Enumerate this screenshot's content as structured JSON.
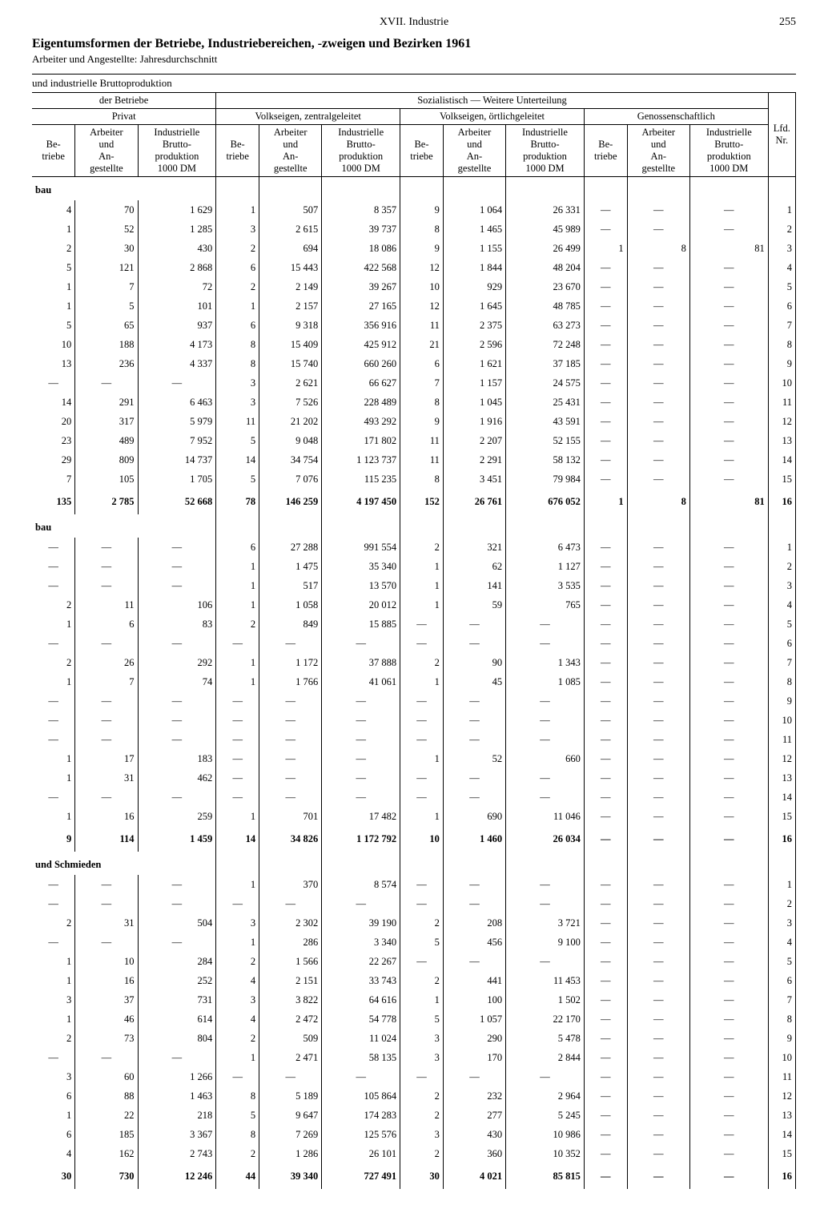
{
  "header": {
    "chapter": "XVII. Industrie",
    "page": "255"
  },
  "title": "Eigentumsformen der Betriebe, Industriebereichen, -zweigen und Bezirken 1961",
  "subtitle": "Arbeiter und Angestellte: Jahresdurchschnitt",
  "strip": "und industrielle Bruttoproduktion",
  "heads": {
    "der_betriebe": "der Betriebe",
    "soz": "Sozialistisch — Weitere Unterteilung",
    "privat": "Privat",
    "vz": "Volkseigen, zentralgeleitet",
    "vo": "Volkseigen, örtlichgeleitet",
    "gen": "Genossenschaftlich",
    "be": "Be-\ntriebe",
    "arb": "Arbeiter\nund\nAn-\ngestellte",
    "ibp": "Industrielle\nBrutto-\nproduktion\n1000 DM",
    "lfd": "Lfd.\nNr."
  },
  "sections": [
    {
      "label": "bau",
      "rows": [
        [
          "4",
          "70",
          "1 629",
          "1",
          "507",
          "8 357",
          "9",
          "1 064",
          "26 331",
          "—",
          "—",
          "—",
          "1"
        ],
        [
          "1",
          "52",
          "1 285",
          "3",
          "2 615",
          "39 737",
          "8",
          "1 465",
          "45 989",
          "—",
          "—",
          "—",
          "2"
        ],
        [
          "2",
          "30",
          "430",
          "2",
          "694",
          "18 086",
          "9",
          "1 155",
          "26 499",
          "1",
          "8",
          "81",
          "3"
        ],
        [
          "5",
          "121",
          "2 868",
          "6",
          "15 443",
          "422 568",
          "12",
          "1 844",
          "48 204",
          "—",
          "—",
          "—",
          "4"
        ],
        [
          "1",
          "7",
          "72",
          "2",
          "2 149",
          "39 267",
          "10",
          "929",
          "23 670",
          "—",
          "—",
          "—",
          "5"
        ],
        [
          "1",
          "5",
          "101",
          "1",
          "2 157",
          "27 165",
          "12",
          "1 645",
          "48 785",
          "—",
          "—",
          "—",
          "6"
        ],
        [
          "5",
          "65",
          "937",
          "6",
          "9 318",
          "356 916",
          "11",
          "2 375",
          "63 273",
          "—",
          "—",
          "—",
          "7"
        ],
        [
          "10",
          "188",
          "4 173",
          "8",
          "15 409",
          "425 912",
          "21",
          "2 596",
          "72 248",
          "—",
          "—",
          "—",
          "8"
        ],
        [
          "13",
          "236",
          "4 337",
          "8",
          "15 740",
          "660 260",
          "6",
          "1 621",
          "37 185",
          "—",
          "—",
          "—",
          "9"
        ],
        [
          "—",
          "—",
          "—",
          "3",
          "2 621",
          "66 627",
          "7",
          "1 157",
          "24 575",
          "—",
          "—",
          "—",
          "10"
        ],
        [
          "14",
          "291",
          "6 463",
          "3",
          "7 526",
          "228 489",
          "8",
          "1 045",
          "25 431",
          "—",
          "—",
          "—",
          "11"
        ],
        [
          "20",
          "317",
          "5 979",
          "11",
          "21 202",
          "493 292",
          "9",
          "1 916",
          "43 591",
          "—",
          "—",
          "—",
          "12"
        ],
        [
          "23",
          "489",
          "7 952",
          "5",
          "9 048",
          "171 802",
          "11",
          "2 207",
          "52 155",
          "—",
          "—",
          "—",
          "13"
        ],
        [
          "29",
          "809",
          "14 737",
          "14",
          "34 754",
          "1 123 737",
          "11",
          "2 291",
          "58 132",
          "—",
          "—",
          "—",
          "14"
        ],
        [
          "7",
          "105",
          "1 705",
          "5",
          "7 076",
          "115 235",
          "8",
          "3 451",
          "79 984",
          "—",
          "—",
          "—",
          "15"
        ]
      ],
      "total": [
        "135",
        "2 785",
        "52 668",
        "78",
        "146 259",
        "4 197 450",
        "152",
        "26 761",
        "676 052",
        "1",
        "8",
        "81",
        "16"
      ]
    },
    {
      "label": "bau",
      "rows": [
        [
          "—",
          "—",
          "—",
          "6",
          "27 288",
          "991 554",
          "2",
          "321",
          "6 473",
          "—",
          "—",
          "—",
          "1"
        ],
        [
          "—",
          "—",
          "—",
          "1",
          "1 475",
          "35 340",
          "1",
          "62",
          "1 127",
          "—",
          "—",
          "—",
          "2"
        ],
        [
          "—",
          "—",
          "—",
          "1",
          "517",
          "13 570",
          "1",
          "141",
          "3 535",
          "—",
          "—",
          "—",
          "3"
        ],
        [
          "2",
          "11",
          "106",
          "1",
          "1 058",
          "20 012",
          "1",
          "59",
          "765",
          "—",
          "—",
          "—",
          "4"
        ],
        [
          "1",
          "6",
          "83",
          "2",
          "849",
          "15 885",
          "—",
          "—",
          "—",
          "—",
          "—",
          "—",
          "5"
        ],
        [
          "—",
          "—",
          "—",
          "—",
          "—",
          "—",
          "—",
          "—",
          "—",
          "—",
          "—",
          "—",
          "6"
        ],
        [
          "2",
          "26",
          "292",
          "1",
          "1 172",
          "37 888",
          "2",
          "90",
          "1 343",
          "—",
          "—",
          "—",
          "7"
        ],
        [
          "1",
          "7",
          "74",
          "1",
          "1 766",
          "41 061",
          "1",
          "45",
          "1 085",
          "—",
          "—",
          "—",
          "8"
        ],
        [
          "—",
          "—",
          "—",
          "—",
          "—",
          "—",
          "—",
          "—",
          "—",
          "—",
          "—",
          "—",
          "9"
        ],
        [
          "—",
          "—",
          "—",
          "—",
          "—",
          "—",
          "—",
          "—",
          "—",
          "—",
          "—",
          "—",
          "10"
        ],
        [
          "—",
          "—",
          "—",
          "—",
          "—",
          "—",
          "—",
          "—",
          "—",
          "—",
          "—",
          "—",
          "11"
        ],
        [
          "1",
          "17",
          "183",
          "—",
          "—",
          "—",
          "1",
          "52",
          "660",
          "—",
          "—",
          "—",
          "12"
        ],
        [
          "1",
          "31",
          "462",
          "—",
          "—",
          "—",
          "—",
          "—",
          "—",
          "—",
          "—",
          "—",
          "13"
        ],
        [
          "—",
          "—",
          "—",
          "—",
          "—",
          "—",
          "—",
          "—",
          "—",
          "—",
          "—",
          "—",
          "14"
        ],
        [
          "1",
          "16",
          "259",
          "1",
          "701",
          "17 482",
          "1",
          "690",
          "11 046",
          "—",
          "—",
          "—",
          "15"
        ]
      ],
      "total": [
        "9",
        "114",
        "1 459",
        "14",
        "34 826",
        "1 172 792",
        "10",
        "1 460",
        "26 034",
        "—",
        "—",
        "—",
        "16"
      ]
    },
    {
      "label": "und Schmieden",
      "rows": [
        [
          "—",
          "—",
          "—",
          "1",
          "370",
          "8 574",
          "—",
          "—",
          "—",
          "—",
          "—",
          "—",
          "1"
        ],
        [
          "—",
          "—",
          "—",
          "—",
          "—",
          "—",
          "—",
          "—",
          "—",
          "—",
          "—",
          "—",
          "2"
        ],
        [
          "2",
          "31",
          "504",
          "3",
          "2 302",
          "39 190",
          "2",
          "208",
          "3 721",
          "—",
          "—",
          "—",
          "3"
        ],
        [
          "—",
          "—",
          "—",
          "1",
          "286",
          "3 340",
          "5",
          "456",
          "9 100",
          "—",
          "—",
          "—",
          "4"
        ],
        [
          "1",
          "10",
          "284",
          "2",
          "1 566",
          "22 267",
          "—",
          "—",
          "—",
          "—",
          "—",
          "—",
          "5"
        ],
        [
          "1",
          "16",
          "252",
          "4",
          "2 151",
          "33 743",
          "2",
          "441",
          "11 453",
          "—",
          "—",
          "—",
          "6"
        ],
        [
          "3",
          "37",
          "731",
          "3",
          "3 822",
          "64 616",
          "1",
          "100",
          "1 502",
          "—",
          "—",
          "—",
          "7"
        ],
        [
          "1",
          "46",
          "614",
          "4",
          "2 472",
          "54 778",
          "5",
          "1 057",
          "22 170",
          "—",
          "—",
          "—",
          "8"
        ],
        [
          "2",
          "73",
          "804",
          "2",
          "509",
          "11 024",
          "3",
          "290",
          "5 478",
          "—",
          "—",
          "—",
          "9"
        ],
        [
          "—",
          "—",
          "—",
          "1",
          "2 471",
          "58 135",
          "3",
          "170",
          "2 844",
          "—",
          "—",
          "—",
          "10"
        ],
        [
          "3",
          "60",
          "1 266",
          "—",
          "—",
          "—",
          "—",
          "—",
          "—",
          "—",
          "—",
          "—",
          "11"
        ],
        [
          "6",
          "88",
          "1 463",
          "8",
          "5 189",
          "105 864",
          "2",
          "232",
          "2 964",
          "—",
          "—",
          "—",
          "12"
        ],
        [
          "1",
          "22",
          "218",
          "5",
          "9 647",
          "174 283",
          "2",
          "277",
          "5 245",
          "—",
          "—",
          "—",
          "13"
        ],
        [
          "6",
          "185",
          "3 367",
          "8",
          "7 269",
          "125 576",
          "3",
          "430",
          "10 986",
          "—",
          "—",
          "—",
          "14"
        ],
        [
          "4",
          "162",
          "2 743",
          "2",
          "1 286",
          "26 101",
          "2",
          "360",
          "10 352",
          "—",
          "—",
          "—",
          "15"
        ]
      ],
      "total": [
        "30",
        "730",
        "12 246",
        "44",
        "39 340",
        "727 491",
        "30",
        "4 021",
        "85 815",
        "—",
        "—",
        "—",
        "16"
      ]
    }
  ]
}
